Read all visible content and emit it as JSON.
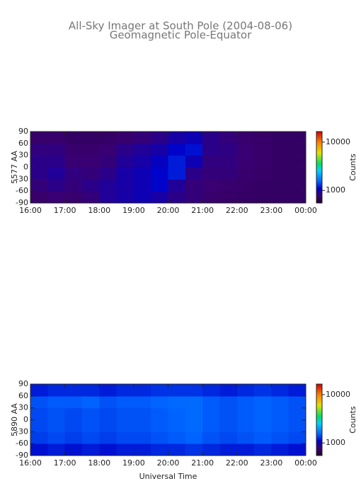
{
  "title": "All-Sky Imager at South Pole (2004-08-06)",
  "subtitle": "Geomagnetic Pole-Equator",
  "chart_data": [
    {
      "type": "heatmap",
      "ylabel": "5577 AA",
      "colorbar_label": "Counts",
      "colormap": "rainbow",
      "zscale": "log",
      "xlim": [
        16,
        24
      ],
      "ylim": [
        -90,
        90
      ],
      "zlim": [
        550,
        16500
      ],
      "xticks": [
        {
          "value": 16,
          "label": "16:00"
        },
        {
          "value": 17,
          "label": "17:00"
        },
        {
          "value": 18,
          "label": "18:00"
        },
        {
          "value": 19,
          "label": "19:00"
        },
        {
          "value": 20,
          "label": "20:00"
        },
        {
          "value": 21,
          "label": "21:00"
        },
        {
          "value": 22,
          "label": "22:00"
        },
        {
          "value": 23,
          "label": "23:00"
        },
        {
          "value": 24,
          "label": "00:00"
        }
      ],
      "yticks": [
        -90,
        -60,
        -30,
        0,
        30,
        60,
        90
      ],
      "zticks": [
        1000,
        10000
      ],
      "x_bins": [
        16,
        16.5,
        17,
        17.5,
        18,
        18.5,
        19,
        19.5,
        20,
        20.5,
        21,
        21.5,
        22,
        22.5,
        23,
        23.5,
        24
      ],
      "y_bins": [
        -90,
        -60,
        -30,
        0,
        30,
        60,
        90
      ],
      "z": [
        [
          750,
          780,
          760,
          800,
          900,
          950,
          1000,
          950,
          850,
          800,
          760,
          740,
          730,
          720,
          720,
          720
        ],
        [
          800,
          850,
          800,
          850,
          900,
          950,
          1000,
          1100,
          900,
          800,
          780,
          760,
          740,
          730,
          720,
          720
        ],
        [
          850,
          900,
          820,
          800,
          850,
          950,
          1000,
          1100,
          1200,
          850,
          800,
          800,
          760,
          740,
          730,
          720
        ],
        [
          850,
          850,
          780,
          780,
          800,
          900,
          950,
          1050,
          1200,
          1000,
          820,
          820,
          780,
          750,
          730,
          720
        ],
        [
          820,
          820,
          760,
          760,
          780,
          850,
          900,
          950,
          1100,
          1150,
          850,
          830,
          780,
          750,
          730,
          720
        ],
        [
          750,
          760,
          720,
          720,
          730,
          760,
          800,
          850,
          950,
          1000,
          850,
          800,
          760,
          740,
          720,
          720
        ]
      ]
    },
    {
      "type": "heatmap",
      "ylabel": "5890 AA",
      "xlabel": "Universal Time",
      "colorbar_label": "Counts",
      "colormap": "rainbow",
      "zscale": "log",
      "xlim": [
        16,
        24
      ],
      "ylim": [
        -90,
        90
      ],
      "zlim": [
        550,
        16500
      ],
      "xticks": [
        {
          "value": 16,
          "label": "16:00"
        },
        {
          "value": 17,
          "label": "17:00"
        },
        {
          "value": 18,
          "label": "18:00"
        },
        {
          "value": 19,
          "label": "19:00"
        },
        {
          "value": 20,
          "label": "20:00"
        },
        {
          "value": 21,
          "label": "21:00"
        },
        {
          "value": 22,
          "label": "22:00"
        },
        {
          "value": 23,
          "label": "23:00"
        },
        {
          "value": 24,
          "label": "00:00"
        }
      ],
      "yticks": [
        -90,
        -60,
        -30,
        0,
        30,
        60,
        90
      ],
      "zticks": [
        1000,
        10000
      ],
      "x_bins": [
        16,
        16.5,
        17,
        17.5,
        18,
        18.5,
        19,
        19.5,
        20,
        20.5,
        21,
        21.5,
        22,
        22.5,
        23,
        23.5,
        24
      ],
      "y_bins": [
        -90,
        -60,
        -30,
        0,
        30,
        60,
        90
      ],
      "z": [
        [
          1150,
          1200,
          1150,
          1200,
          1150,
          1200,
          1200,
          1250,
          1250,
          1300,
          1250,
          1200,
          1200,
          1250,
          1200,
          1150
        ],
        [
          1350,
          1400,
          1350,
          1400,
          1350,
          1400,
          1400,
          1450,
          1500,
          1550,
          1450,
          1400,
          1450,
          1500,
          1450,
          1400
        ],
        [
          1400,
          1450,
          1400,
          1450,
          1400,
          1450,
          1450,
          1500,
          1550,
          1600,
          1500,
          1450,
          1500,
          1550,
          1500,
          1450
        ],
        [
          1400,
          1450,
          1400,
          1450,
          1400,
          1450,
          1450,
          1500,
          1550,
          1600,
          1500,
          1450,
          1500,
          1550,
          1500,
          1450
        ],
        [
          1450,
          1500,
          1500,
          1550,
          1450,
          1500,
          1500,
          1550,
          1600,
          1600,
          1500,
          1450,
          1500,
          1550,
          1500,
          1450
        ],
        [
          1200,
          1250,
          1250,
          1250,
          1200,
          1250,
          1250,
          1300,
          1300,
          1300,
          1250,
          1200,
          1250,
          1300,
          1250,
          1200
        ]
      ]
    }
  ]
}
